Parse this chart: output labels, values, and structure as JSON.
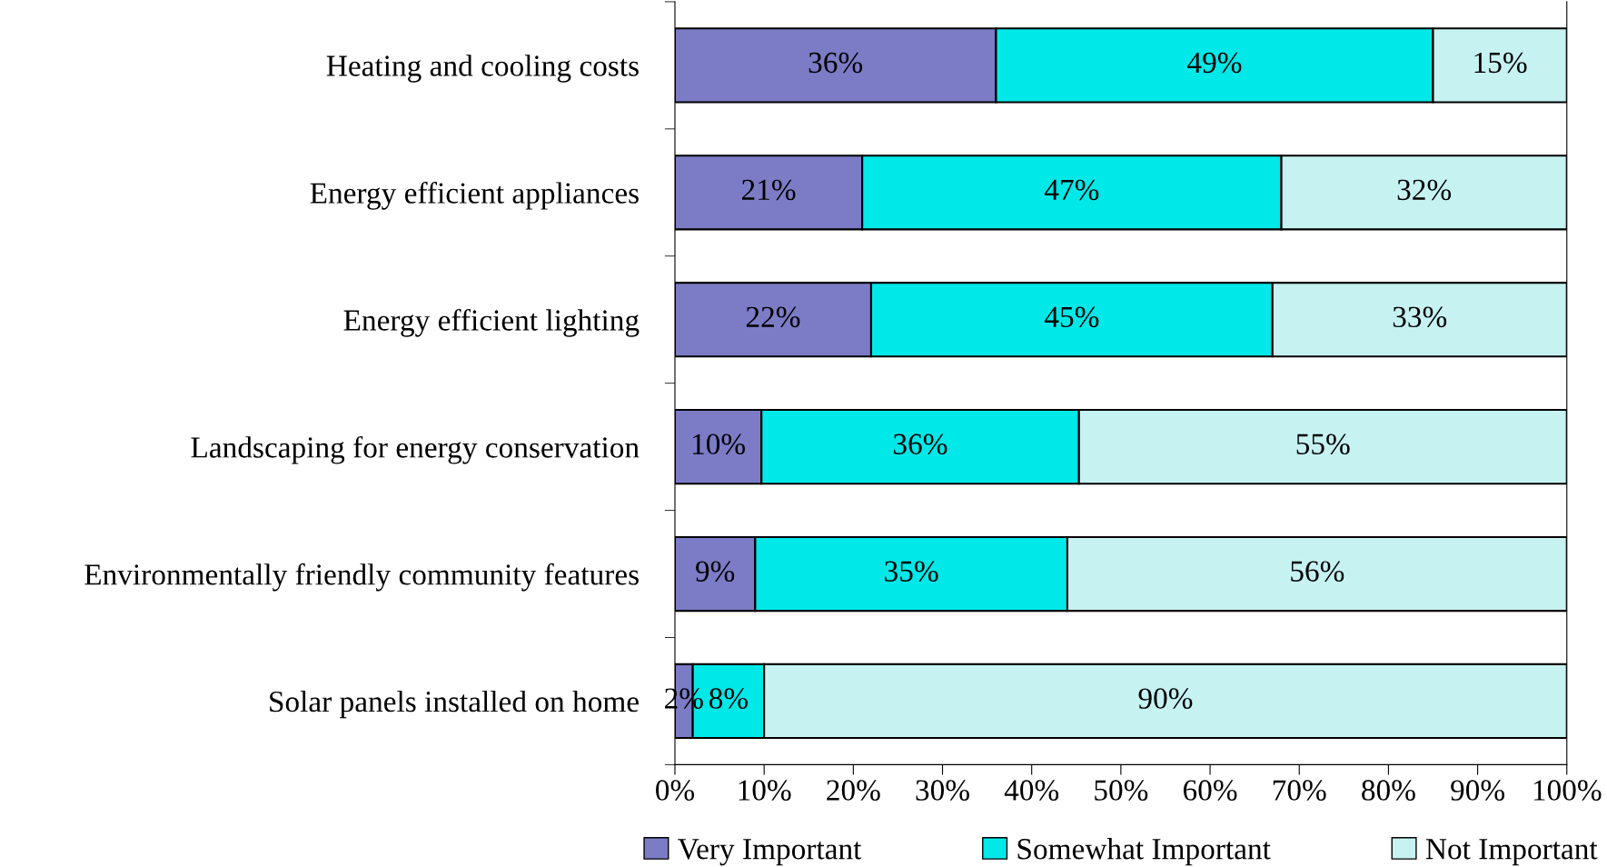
{
  "chart_data": {
    "type": "bar",
    "orientation": "horizontal",
    "stacked": true,
    "categories": [
      "Heating and cooling costs",
      "Energy efficient appliances",
      "Energy efficient lighting",
      "Landscaping for energy conservation",
      "Environmentally friendly community features",
      "Solar panels installed on home"
    ],
    "series": [
      {
        "name": "Very Important",
        "color": "#7b7bc6",
        "values": [
          36,
          21,
          22,
          9.7,
          9,
          2
        ],
        "value_labels": [
          "36%",
          "21%",
          "22%",
          "10%",
          "9%",
          "2%"
        ]
      },
      {
        "name": "Somewhat Important",
        "color": "#00e8e8",
        "values": [
          49,
          47,
          45,
          35.6,
          35,
          8
        ],
        "value_labels": [
          "49%",
          "47%",
          "45%",
          "36%",
          "35%",
          "8%"
        ]
      },
      {
        "name": "Not Important",
        "color": "#c6f2f2",
        "values": [
          15,
          32,
          33,
          54.7,
          56,
          90
        ],
        "value_labels": [
          "15%",
          "32%",
          "33%",
          "55%",
          "56%",
          "90%"
        ]
      }
    ],
    "xlim": [
      0,
      100
    ],
    "xticks": [
      {
        "value": 0,
        "label": "0%"
      },
      {
        "value": 10,
        "label": "10%"
      },
      {
        "value": 20,
        "label": "20%"
      },
      {
        "value": 30,
        "label": "30%"
      },
      {
        "value": 40,
        "label": "40%"
      },
      {
        "value": 50,
        "label": "50%"
      },
      {
        "value": 60,
        "label": "60%"
      },
      {
        "value": 70,
        "label": "70%"
      },
      {
        "value": 80,
        "label": "80%"
      },
      {
        "value": 90,
        "label": "90%"
      },
      {
        "value": 100,
        "label": "100%"
      }
    ],
    "grid": false,
    "legend": "bottom"
  }
}
